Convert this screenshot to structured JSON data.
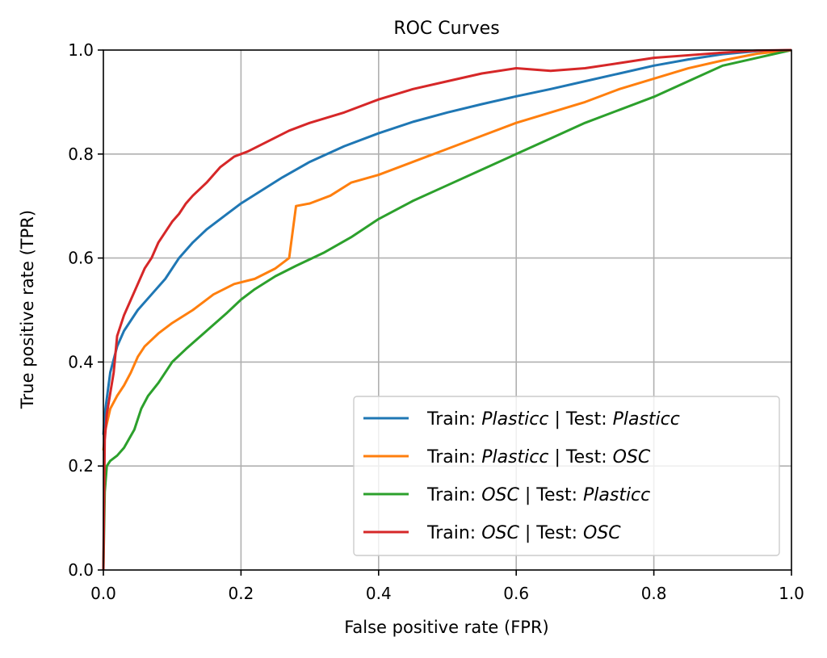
{
  "chart_data": {
    "type": "line",
    "title": "ROC Curves",
    "xlabel": "False positive rate (FPR)",
    "ylabel": "True positive rate (TPR)",
    "xlim": [
      0.0,
      1.0
    ],
    "ylim": [
      0.0,
      1.0
    ],
    "grid": true,
    "legend_position": "lower-right",
    "x_ticks": [
      0.0,
      0.2,
      0.4,
      0.6,
      0.8,
      1.0
    ],
    "y_ticks": [
      0.0,
      0.2,
      0.4,
      0.6,
      0.8,
      1.0
    ],
    "x_tick_labels": [
      "0.0",
      "0.2",
      "0.4",
      "0.6",
      "0.8",
      "1.0"
    ],
    "y_tick_labels": [
      "0.0",
      "0.2",
      "0.4",
      "0.6",
      "0.8",
      "1.0"
    ],
    "series": [
      {
        "name": "Train: Plasticc | Test: Plasticc",
        "name_parts": [
          [
            "Train: ",
            false
          ],
          [
            "Plasticc",
            true
          ],
          [
            " | Test: ",
            false
          ],
          [
            "Plasticc",
            true
          ]
        ],
        "color": "#1f77b4",
        "x": [
          0,
          0.002,
          0.01,
          0.02,
          0.03,
          0.05,
          0.07,
          0.09,
          0.11,
          0.13,
          0.15,
          0.18,
          0.2,
          0.23,
          0.26,
          0.3,
          0.35,
          0.4,
          0.45,
          0.5,
          0.55,
          0.6,
          0.65,
          0.7,
          0.75,
          0.8,
          0.85,
          0.9,
          0.95,
          1.0
        ],
        "y": [
          0.26,
          0.3,
          0.38,
          0.43,
          0.46,
          0.5,
          0.53,
          0.56,
          0.6,
          0.63,
          0.655,
          0.685,
          0.705,
          0.73,
          0.755,
          0.785,
          0.815,
          0.84,
          0.862,
          0.88,
          0.896,
          0.911,
          0.925,
          0.94,
          0.955,
          0.97,
          0.982,
          0.992,
          0.998,
          1.0
        ]
      },
      {
        "name": "Train: Plasticc | Test: OSC",
        "name_parts": [
          [
            "Train: ",
            false
          ],
          [
            "Plasticc",
            true
          ],
          [
            " | Test: ",
            false
          ],
          [
            "OSC",
            true
          ]
        ],
        "color": "#ff7f0e",
        "x": [
          0,
          0.003,
          0.01,
          0.02,
          0.03,
          0.04,
          0.05,
          0.06,
          0.08,
          0.1,
          0.13,
          0.16,
          0.19,
          0.22,
          0.25,
          0.27,
          0.28,
          0.3,
          0.33,
          0.36,
          0.4,
          0.45,
          0.5,
          0.55,
          0.6,
          0.65,
          0.7,
          0.75,
          0.8,
          0.85,
          0.9,
          0.95,
          1.0
        ],
        "y": [
          0.23,
          0.27,
          0.31,
          0.335,
          0.355,
          0.38,
          0.41,
          0.43,
          0.455,
          0.475,
          0.5,
          0.53,
          0.55,
          0.56,
          0.58,
          0.6,
          0.7,
          0.705,
          0.72,
          0.745,
          0.76,
          0.785,
          0.81,
          0.835,
          0.86,
          0.88,
          0.9,
          0.925,
          0.945,
          0.965,
          0.98,
          0.993,
          1.0
        ]
      },
      {
        "name": "Train: OSC | Test: Plasticc",
        "name_parts": [
          [
            "Train: ",
            false
          ],
          [
            "OSC",
            true
          ],
          [
            " | Test: ",
            false
          ],
          [
            "Plasticc",
            true
          ]
        ],
        "color": "#2ca02c",
        "x": [
          0,
          0.002,
          0.005,
          0.01,
          0.02,
          0.03,
          0.045,
          0.055,
          0.065,
          0.08,
          0.1,
          0.12,
          0.15,
          0.18,
          0.2,
          0.22,
          0.25,
          0.28,
          0.32,
          0.36,
          0.4,
          0.45,
          0.5,
          0.55,
          0.6,
          0.65,
          0.7,
          0.75,
          0.8,
          0.85,
          0.9,
          0.95,
          1.0
        ],
        "y": [
          0.0,
          0.15,
          0.2,
          0.21,
          0.22,
          0.235,
          0.27,
          0.31,
          0.335,
          0.36,
          0.4,
          0.425,
          0.46,
          0.495,
          0.52,
          0.54,
          0.565,
          0.585,
          0.61,
          0.64,
          0.675,
          0.71,
          0.74,
          0.77,
          0.8,
          0.83,
          0.86,
          0.885,
          0.91,
          0.94,
          0.97,
          0.985,
          1.0
        ]
      },
      {
        "name": "Train: OSC | Test: OSC",
        "name_parts": [
          [
            "Train: ",
            false
          ],
          [
            "OSC",
            true
          ],
          [
            " | Test: ",
            false
          ],
          [
            "OSC",
            true
          ]
        ],
        "color": "#d62728",
        "x": [
          0,
          0.002,
          0.005,
          0.01,
          0.015,
          0.02,
          0.03,
          0.04,
          0.05,
          0.06,
          0.07,
          0.08,
          0.09,
          0.1,
          0.11,
          0.12,
          0.13,
          0.15,
          0.17,
          0.19,
          0.21,
          0.24,
          0.27,
          0.3,
          0.35,
          0.4,
          0.45,
          0.5,
          0.55,
          0.6,
          0.65,
          0.7,
          0.75,
          0.8,
          0.85,
          0.9,
          0.95,
          1.0
        ],
        "y": [
          0.0,
          0.25,
          0.3,
          0.34,
          0.38,
          0.45,
          0.49,
          0.52,
          0.55,
          0.58,
          0.6,
          0.63,
          0.65,
          0.67,
          0.685,
          0.705,
          0.72,
          0.745,
          0.775,
          0.795,
          0.805,
          0.825,
          0.845,
          0.86,
          0.88,
          0.905,
          0.925,
          0.94,
          0.955,
          0.965,
          0.96,
          0.965,
          0.975,
          0.985,
          0.99,
          0.995,
          0.999,
          1.0
        ]
      }
    ]
  }
}
